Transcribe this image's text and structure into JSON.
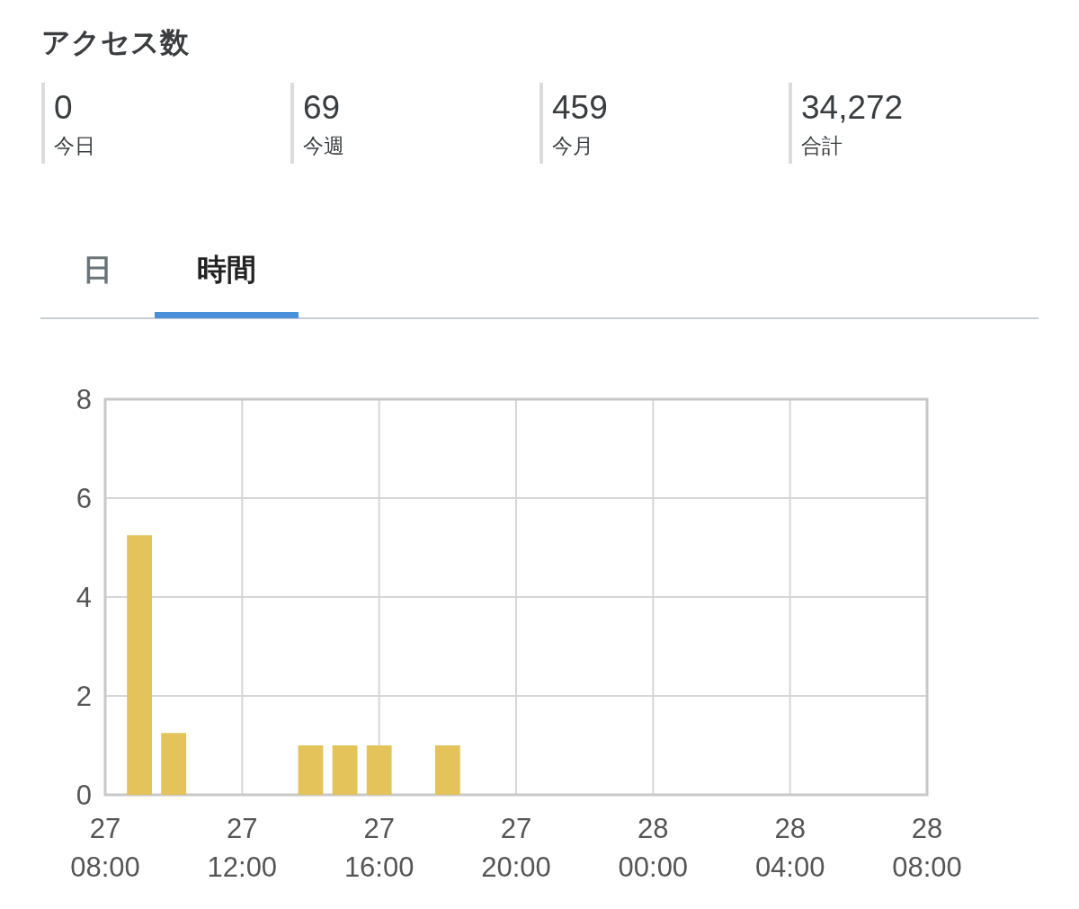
{
  "chart_data": [
    {
      "type": "other",
      "title": "アクセス数",
      "annotations": [
        "0",
        "今日",
        "69",
        "今週",
        "459",
        "今月",
        "34,272",
        "合計"
      ]
    },
    {
      "type": "bar",
      "annotations": [
        "日",
        "時間"
      ],
      "categories": [
        "27 08:00",
        null,
        null,
        null,
        "27 12:00",
        null,
        null,
        null,
        "27 16:00",
        null,
        null,
        null,
        "27 20:00",
        null,
        null,
        null,
        "28 00:00",
        null,
        null,
        null,
        "28 04:00",
        null,
        null,
        null,
        "28 08:00"
      ],
      "values": [
        null,
        5.25,
        1.25,
        null,
        null,
        null,
        1,
        1,
        1,
        null,
        1,
        null,
        null,
        null,
        null,
        null,
        null,
        null,
        null,
        null,
        null,
        null,
        null,
        null,
        null
      ],
      "color": "#e4c35b",
      "ylim": [
        0,
        8
      ],
      "yticks": [
        0,
        2,
        4,
        6,
        8
      ],
      "grid": true
    }
  ]
}
